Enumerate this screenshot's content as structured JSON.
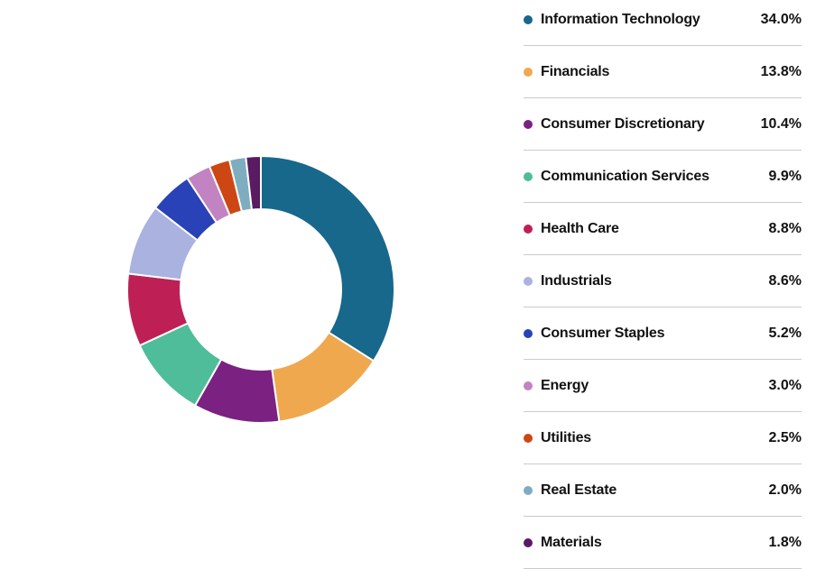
{
  "chart_data": {
    "type": "pie",
    "donut": true,
    "title": "",
    "legend_position": "right",
    "start_angle_deg": 0,
    "direction": "clockwise",
    "categories": [
      "Information Technology",
      "Financials",
      "Consumer Discretionary",
      "Communication Services",
      "Health Care",
      "Industrials",
      "Consumer Staples",
      "Energy",
      "Utilities",
      "Real Estate",
      "Materials"
    ],
    "values": [
      34.0,
      13.8,
      10.4,
      9.9,
      8.8,
      8.6,
      5.2,
      3.0,
      2.5,
      2.0,
      1.8
    ],
    "value_labels": [
      "34.0%",
      "13.8%",
      "10.4%",
      "9.9%",
      "8.8%",
      "8.6%",
      "5.2%",
      "3.0%",
      "2.5%",
      "2.0%",
      "1.8%"
    ],
    "colors": [
      "#17688B",
      "#F0A84E",
      "#7B2182",
      "#4FBD9A",
      "#BE2056",
      "#AAB2E0",
      "#2A42B7",
      "#C183C1",
      "#CC4714",
      "#7EADC0",
      "#5A1B63"
    ],
    "slice_gap_color": "#ffffff",
    "inner_radius_ratio": 0.6
  },
  "legend_style": {
    "divider_color": "#cbcbcb",
    "text_color": "#121212"
  }
}
